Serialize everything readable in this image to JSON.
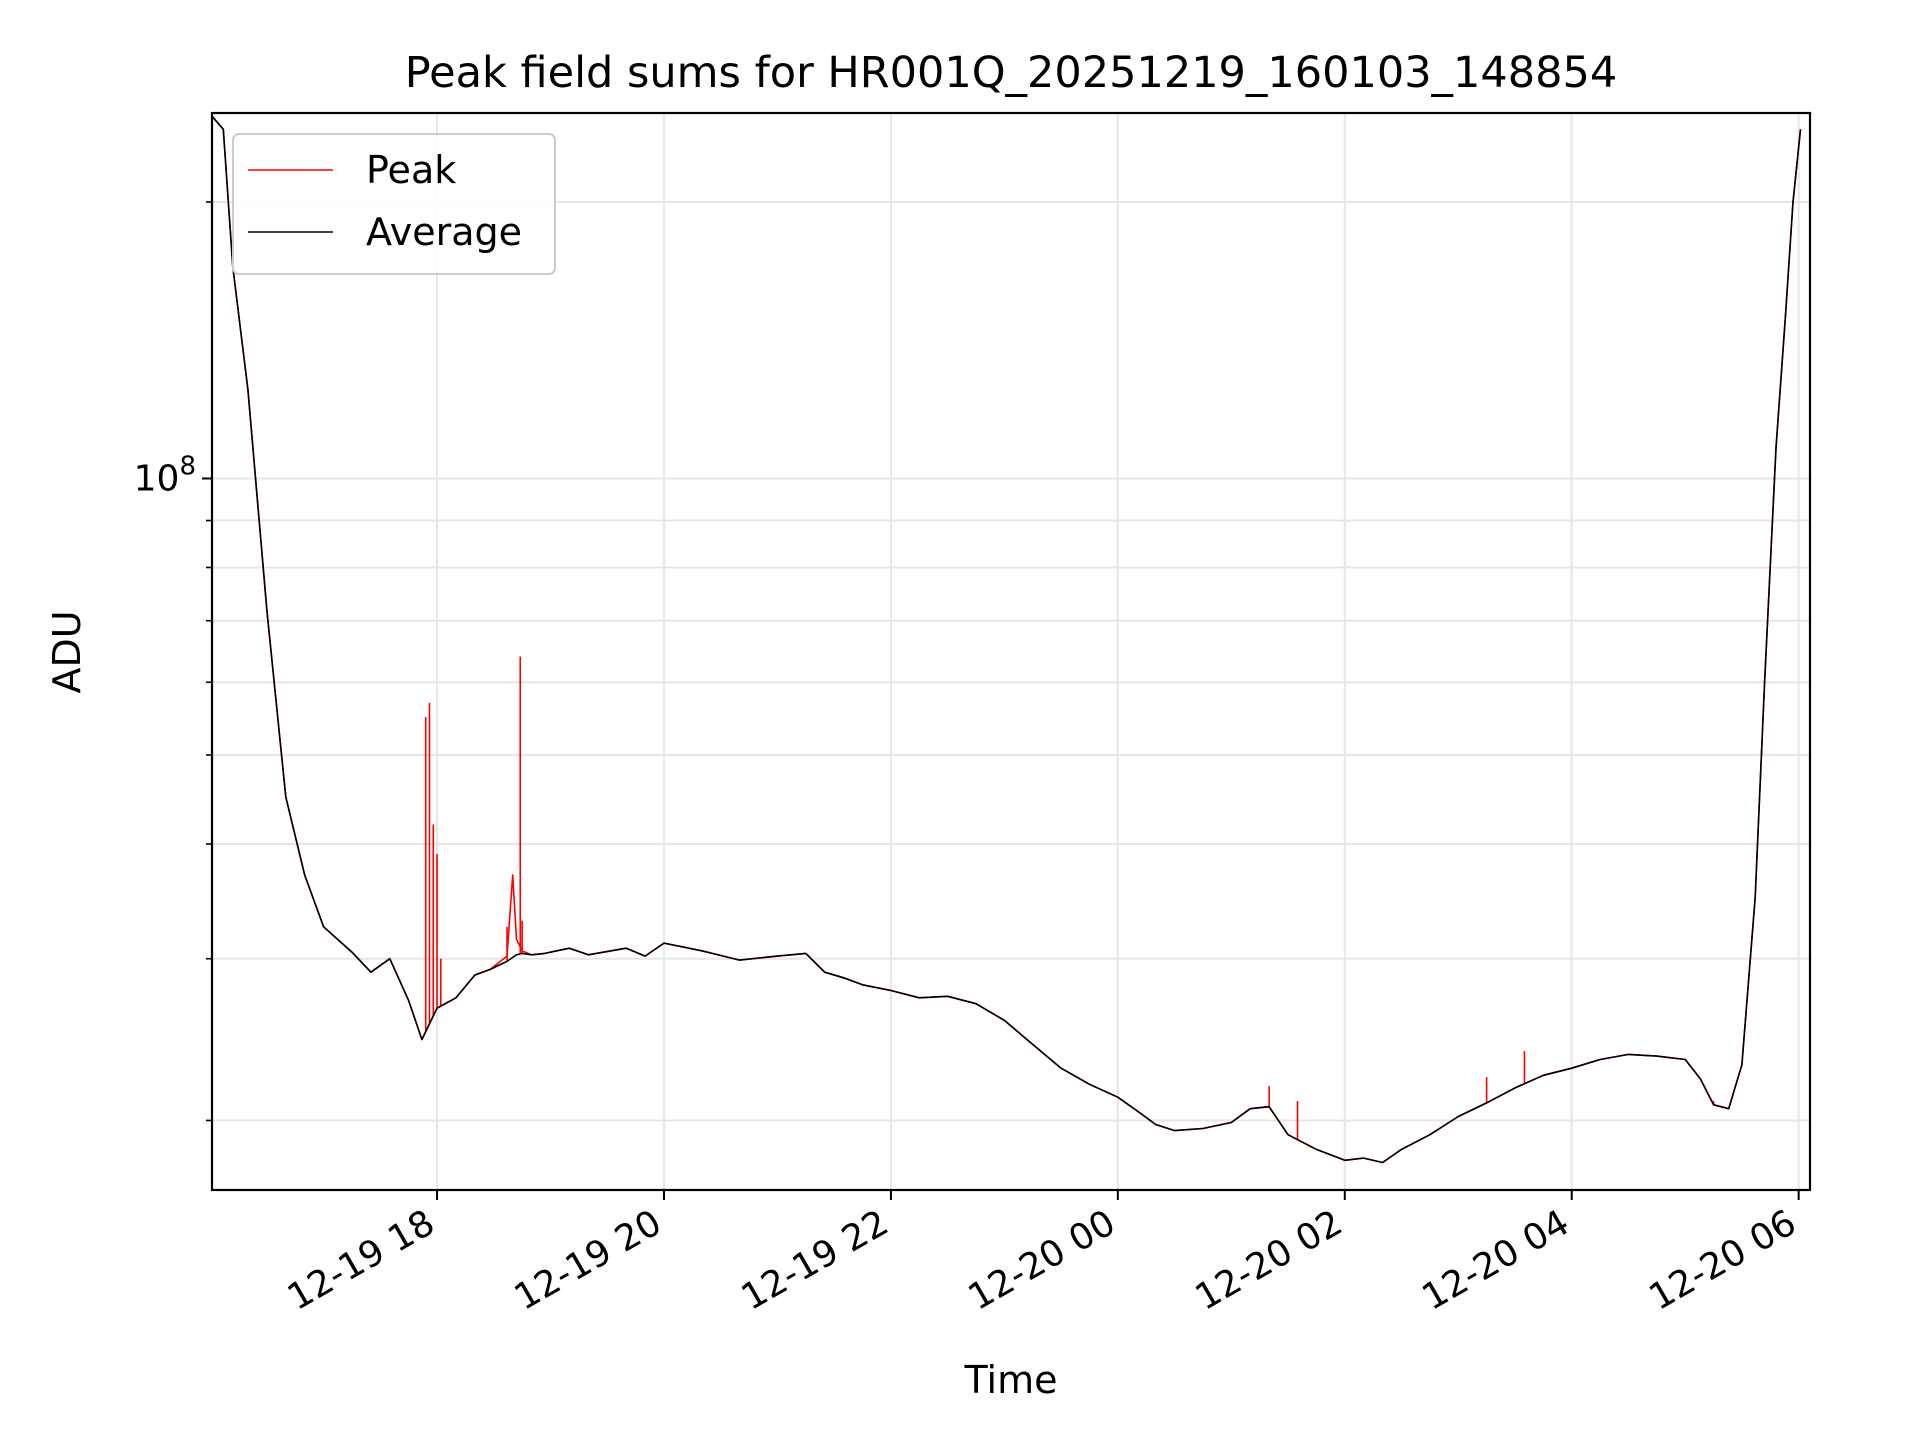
{
  "chart_data": {
    "type": "line",
    "title": "Peak field sums for HR001Q_20251219_160103_148854",
    "xlabel": "Time",
    "ylabel": "ADU",
    "yscale": "log",
    "x_range": [
      "2025-12-19 16:01",
      "2025-12-20 06:06"
    ],
    "y_range": [
      16800000,
      250000000
    ],
    "x_ticks": [
      {
        "t": "2025-12-19 18:00",
        "label": "12-19 18"
      },
      {
        "t": "2025-12-19 20:00",
        "label": "12-19 20"
      },
      {
        "t": "2025-12-19 22:00",
        "label": "12-19 22"
      },
      {
        "t": "2025-12-20 00:00",
        "label": "12-20 00"
      },
      {
        "t": "2025-12-20 02:00",
        "label": "12-20 02"
      },
      {
        "t": "2025-12-20 04:00",
        "label": "12-20 04"
      },
      {
        "t": "2025-12-20 06:00",
        "label": "12-20 06"
      }
    ],
    "y_major_ticks": [
      {
        "value": 100000000,
        "base": "10",
        "exp": "8"
      }
    ],
    "y_minor_ticks": [
      20000000,
      30000000,
      40000000,
      50000000,
      60000000,
      70000000,
      80000000,
      90000000,
      200000000
    ],
    "grid": true,
    "legend_position": "upper-left",
    "series": [
      {
        "name": "Peak",
        "color": "#ff0000",
        "points": [
          [
            "2025-12-19 16:01",
            248000000
          ],
          [
            "2025-12-19 16:07",
            240000000
          ],
          [
            "2025-12-19 16:12",
            170000000
          ],
          [
            "2025-12-19 16:20",
            125000000
          ],
          [
            "2025-12-19 16:30",
            72000000
          ],
          [
            "2025-12-19 16:40",
            45000000
          ],
          [
            "2025-12-19 16:50",
            37000000
          ],
          [
            "2025-12-19 17:00",
            32500000
          ],
          [
            "2025-12-19 17:15",
            30500000
          ],
          [
            "2025-12-19 17:25",
            29000000
          ],
          [
            "2025-12-19 17:35",
            30000000
          ],
          [
            "2025-12-19 17:45",
            27000000
          ],
          [
            "2025-12-19 17:52",
            24500000
          ],
          [
            "2025-12-19 18:00",
            26500000
          ],
          [
            "2025-12-19 18:10",
            27200000
          ],
          [
            "2025-12-19 18:20",
            28800000
          ],
          [
            "2025-12-19 18:28",
            29200000
          ],
          [
            "2025-12-19 18:37",
            30200000
          ],
          [
            "2025-12-19 18:40",
            37000000
          ],
          [
            "2025-12-19 18:42",
            31500000
          ],
          [
            "2025-12-19 18:45",
            30600000
          ],
          [
            "2025-12-19 18:50",
            30300000
          ],
          [
            "2025-12-19 18:57",
            30400000
          ],
          [
            "2025-12-19 19:10",
            30800000
          ],
          [
            "2025-12-19 19:20",
            30300000
          ],
          [
            "2025-12-19 19:40",
            30800000
          ],
          [
            "2025-12-19 19:50",
            30200000
          ],
          [
            "2025-12-19 20:00",
            31200000
          ],
          [
            "2025-12-19 20:20",
            30600000
          ],
          [
            "2025-12-19 20:40",
            29900000
          ],
          [
            "2025-12-19 21:00",
            30200000
          ],
          [
            "2025-12-19 21:15",
            30400000
          ],
          [
            "2025-12-19 21:25",
            29000000
          ],
          [
            "2025-12-19 21:35",
            28600000
          ],
          [
            "2025-12-19 21:45",
            28100000
          ],
          [
            "2025-12-19 22:00",
            27700000
          ],
          [
            "2025-12-19 22:15",
            27200000
          ],
          [
            "2025-12-19 22:30",
            27300000
          ],
          [
            "2025-12-19 22:45",
            26800000
          ],
          [
            "2025-12-19 23:00",
            25700000
          ],
          [
            "2025-12-19 23:15",
            24200000
          ],
          [
            "2025-12-19 23:30",
            22800000
          ],
          [
            "2025-12-19 23:45",
            21900000
          ],
          [
            "2025-12-20 00:00",
            21200000
          ],
          [
            "2025-12-20 00:10",
            20500000
          ],
          [
            "2025-12-20 00:20",
            19800000
          ],
          [
            "2025-12-20 00:30",
            19500000
          ],
          [
            "2025-12-20 00:45",
            19600000
          ],
          [
            "2025-12-20 01:00",
            19900000
          ],
          [
            "2025-12-20 01:10",
            20600000
          ],
          [
            "2025-12-20 01:20",
            20700000
          ],
          [
            "2025-12-20 01:30",
            19300000
          ],
          [
            "2025-12-20 01:45",
            18600000
          ],
          [
            "2025-12-20 02:00",
            18100000
          ],
          [
            "2025-12-20 02:10",
            18200000
          ],
          [
            "2025-12-20 02:20",
            18000000
          ],
          [
            "2025-12-20 02:30",
            18600000
          ],
          [
            "2025-12-20 02:45",
            19300000
          ],
          [
            "2025-12-20 03:00",
            20200000
          ],
          [
            "2025-12-20 03:15",
            20900000
          ],
          [
            "2025-12-20 03:30",
            21700000
          ],
          [
            "2025-12-20 03:45",
            22400000
          ],
          [
            "2025-12-20 04:00",
            22800000
          ],
          [
            "2025-12-20 04:15",
            23300000
          ],
          [
            "2025-12-20 04:30",
            23600000
          ],
          [
            "2025-12-20 04:45",
            23500000
          ],
          [
            "2025-12-20 05:00",
            23300000
          ],
          [
            "2025-12-20 05:08",
            22200000
          ],
          [
            "2025-12-20 05:15",
            20800000
          ],
          [
            "2025-12-20 05:23",
            20600000
          ],
          [
            "2025-12-20 05:30",
            23000000
          ],
          [
            "2025-12-20 05:37",
            35000000
          ],
          [
            "2025-12-20 05:42",
            60000000
          ],
          [
            "2025-12-20 05:48",
            108000000
          ],
          [
            "2025-12-20 05:53",
            150000000
          ],
          [
            "2025-12-20 05:57",
            200000000
          ],
          [
            "2025-12-20 06:01",
            240000000
          ]
        ]
      },
      {
        "name": "Average",
        "color": "#000000",
        "points": [
          [
            "2025-12-19 16:01",
            248000000
          ],
          [
            "2025-12-19 16:07",
            240000000
          ],
          [
            "2025-12-19 16:12",
            170000000
          ],
          [
            "2025-12-19 16:20",
            125000000
          ],
          [
            "2025-12-19 16:30",
            72000000
          ],
          [
            "2025-12-19 16:40",
            45000000
          ],
          [
            "2025-12-19 16:50",
            37000000
          ],
          [
            "2025-12-19 17:00",
            32500000
          ],
          [
            "2025-12-19 17:15",
            30500000
          ],
          [
            "2025-12-19 17:25",
            29000000
          ],
          [
            "2025-12-19 17:35",
            30000000
          ],
          [
            "2025-12-19 17:45",
            27000000
          ],
          [
            "2025-12-19 17:52",
            24500000
          ],
          [
            "2025-12-19 18:00",
            26500000
          ],
          [
            "2025-12-19 18:10",
            27200000
          ],
          [
            "2025-12-19 18:20",
            28800000
          ],
          [
            "2025-12-19 18:28",
            29200000
          ],
          [
            "2025-12-19 18:37",
            29800000
          ],
          [
            "2025-12-19 18:40",
            30100000
          ],
          [
            "2025-12-19 18:42",
            30300000
          ],
          [
            "2025-12-19 18:45",
            30400000
          ],
          [
            "2025-12-19 18:50",
            30300000
          ],
          [
            "2025-12-19 18:57",
            30400000
          ],
          [
            "2025-12-19 19:10",
            30800000
          ],
          [
            "2025-12-19 19:20",
            30300000
          ],
          [
            "2025-12-19 19:40",
            30800000
          ],
          [
            "2025-12-19 19:50",
            30200000
          ],
          [
            "2025-12-19 20:00",
            31200000
          ],
          [
            "2025-12-19 20:20",
            30600000
          ],
          [
            "2025-12-19 20:40",
            29900000
          ],
          [
            "2025-12-19 21:00",
            30200000
          ],
          [
            "2025-12-19 21:15",
            30400000
          ],
          [
            "2025-12-19 21:25",
            29000000
          ],
          [
            "2025-12-19 21:35",
            28600000
          ],
          [
            "2025-12-19 21:45",
            28100000
          ],
          [
            "2025-12-19 22:00",
            27700000
          ],
          [
            "2025-12-19 22:15",
            27200000
          ],
          [
            "2025-12-19 22:30",
            27300000
          ],
          [
            "2025-12-19 22:45",
            26800000
          ],
          [
            "2025-12-19 23:00",
            25700000
          ],
          [
            "2025-12-19 23:15",
            24200000
          ],
          [
            "2025-12-19 23:30",
            22800000
          ],
          [
            "2025-12-19 23:45",
            21900000
          ],
          [
            "2025-12-20 00:00",
            21200000
          ],
          [
            "2025-12-20 00:10",
            20500000
          ],
          [
            "2025-12-20 00:20",
            19800000
          ],
          [
            "2025-12-20 00:30",
            19500000
          ],
          [
            "2025-12-20 00:45",
            19600000
          ],
          [
            "2025-12-20 01:00",
            19900000
          ],
          [
            "2025-12-20 01:10",
            20600000
          ],
          [
            "2025-12-20 01:20",
            20700000
          ],
          [
            "2025-12-20 01:30",
            19300000
          ],
          [
            "2025-12-20 01:45",
            18600000
          ],
          [
            "2025-12-20 02:00",
            18100000
          ],
          [
            "2025-12-20 02:10",
            18200000
          ],
          [
            "2025-12-20 02:20",
            18000000
          ],
          [
            "2025-12-20 02:30",
            18600000
          ],
          [
            "2025-12-20 02:45",
            19300000
          ],
          [
            "2025-12-20 03:00",
            20200000
          ],
          [
            "2025-12-20 03:15",
            20900000
          ],
          [
            "2025-12-20 03:30",
            21700000
          ],
          [
            "2025-12-20 03:45",
            22400000
          ],
          [
            "2025-12-20 04:00",
            22800000
          ],
          [
            "2025-12-20 04:15",
            23300000
          ],
          [
            "2025-12-20 04:30",
            23600000
          ],
          [
            "2025-12-20 04:45",
            23500000
          ],
          [
            "2025-12-20 05:00",
            23300000
          ],
          [
            "2025-12-20 05:08",
            22200000
          ],
          [
            "2025-12-20 05:15",
            20800000
          ],
          [
            "2025-12-20 05:23",
            20600000
          ],
          [
            "2025-12-20 05:30",
            23000000
          ],
          [
            "2025-12-20 05:37",
            35000000
          ],
          [
            "2025-12-20 05:42",
            60000000
          ],
          [
            "2025-12-20 05:48",
            108000000
          ],
          [
            "2025-12-20 05:53",
            150000000
          ],
          [
            "2025-12-20 05:57",
            200000000
          ],
          [
            "2025-12-20 06:01",
            240000000
          ]
        ]
      }
    ],
    "peak_spikes": [
      [
        "2025-12-19 17:54",
        55000000
      ],
      [
        "2025-12-19 17:56",
        57000000
      ],
      [
        "2025-12-19 17:58",
        42000000
      ],
      [
        "2025-12-19 18:00",
        39000000
      ],
      [
        "2025-12-19 18:02",
        30000000
      ],
      [
        "2025-12-19 18:37",
        32500000
      ],
      [
        "2025-12-19 18:44",
        64000000
      ],
      [
        "2025-12-19 18:45",
        33000000
      ],
      [
        "2025-12-20 01:20",
        21800000
      ],
      [
        "2025-12-20 01:35",
        21000000
      ],
      [
        "2025-12-20 03:15",
        22300000
      ],
      [
        "2025-12-20 03:35",
        23800000
      ],
      [
        "2025-12-20 05:15",
        21000000
      ]
    ]
  }
}
